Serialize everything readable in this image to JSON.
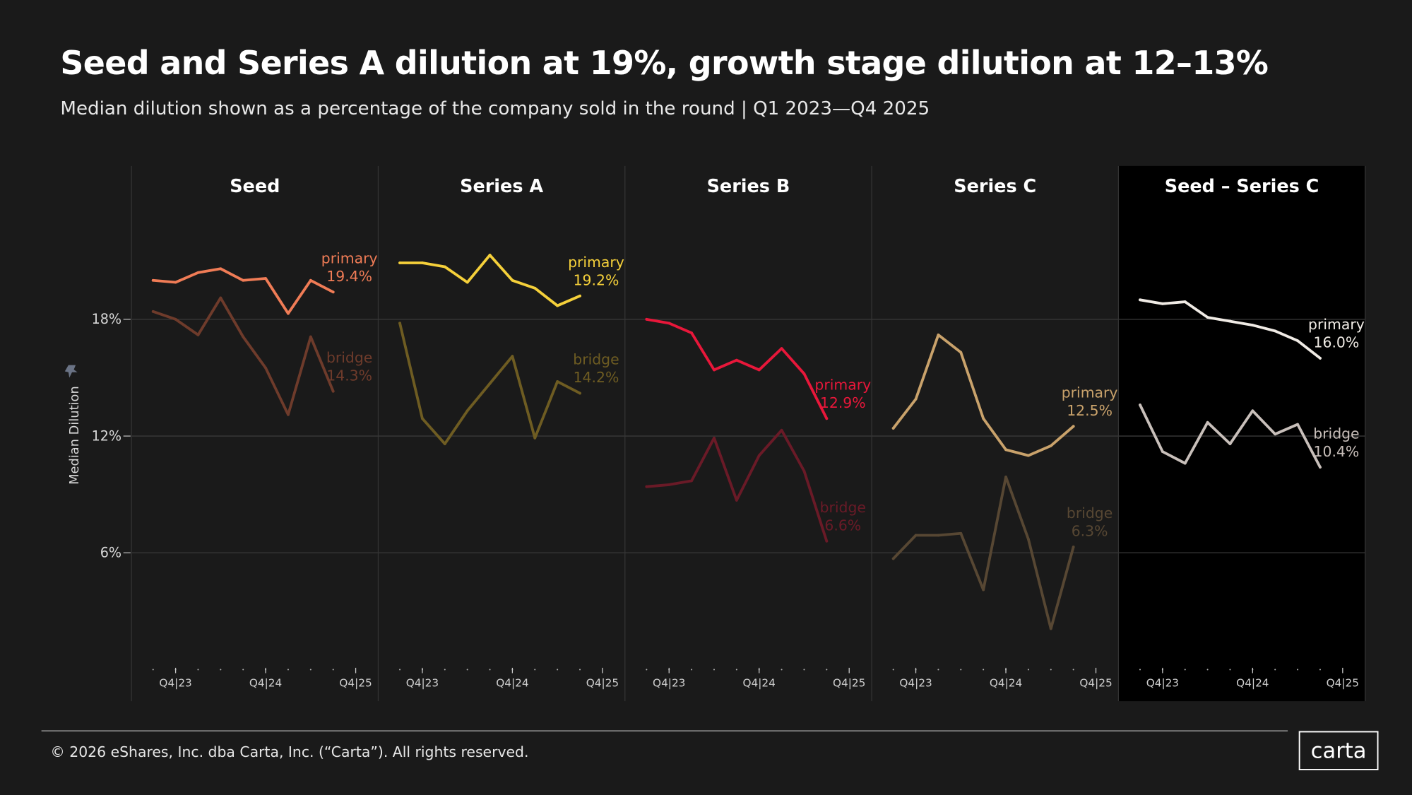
{
  "header": {
    "title": "Seed and Series A dilution at 19%, growth stage dilution at 12–13%",
    "subtitle": "Median dilution shown as a percentage of the company sold in the round | Q1 2023—Q4 2025"
  },
  "footer": {
    "copyright": "© 2026 eShares, Inc. dba Carta, Inc. (“Carta”). All rights reserved.",
    "logo": "carta"
  },
  "icons": {
    "axis_pin": "pin-icon"
  },
  "chart_data": {
    "type": "line",
    "ylabel": "Median Dilution",
    "ylim": [
      0,
      23
    ],
    "yticks": [
      {
        "value": 18,
        "label": "18%"
      },
      {
        "value": 12,
        "label": "12%"
      },
      {
        "value": 6,
        "label": "6%"
      }
    ],
    "grid": true,
    "x": [
      "Q3|23",
      "Q4|23",
      "Q1|24",
      "Q2|24",
      "Q3|24",
      "Q4|24",
      "Q1|25",
      "Q2|25",
      "Q3|25"
    ],
    "xtick_labels": [
      "Q4|23",
      "Q4|24",
      "Q4|25"
    ],
    "panels": [
      {
        "title": "Seed",
        "highlight": false,
        "series": [
          {
            "name": "primary",
            "end_label": "19.4%",
            "color": "#f07c56",
            "values": [
              20.0,
              19.9,
              20.4,
              20.6,
              20.0,
              20.1,
              18.3,
              20.0,
              19.4
            ]
          },
          {
            "name": "bridge",
            "end_label": "14.3%",
            "color": "#6e3b2b",
            "values": [
              18.4,
              18.0,
              17.2,
              19.1,
              17.1,
              15.5,
              13.1,
              17.1,
              14.3
            ]
          }
        ]
      },
      {
        "title": "Series A",
        "highlight": false,
        "series": [
          {
            "name": "primary",
            "end_label": "19.2%",
            "color": "#f5d03a",
            "values": [
              20.9,
              20.9,
              20.7,
              19.9,
              21.3,
              20.0,
              19.6,
              18.7,
              19.2
            ]
          },
          {
            "name": "bridge",
            "end_label": "14.2%",
            "color": "#6e5c22",
            "values": [
              17.8,
              12.9,
              11.6,
              13.3,
              14.7,
              16.1,
              11.9,
              14.8,
              14.2
            ]
          }
        ]
      },
      {
        "title": "Series B",
        "highlight": false,
        "series": [
          {
            "name": "primary",
            "end_label": "12.9%",
            "color": "#e8173a",
            "values": [
              18.0,
              17.8,
              17.3,
              15.4,
              15.9,
              15.4,
              16.5,
              15.2,
              12.9
            ]
          },
          {
            "name": "bridge",
            "end_label": "6.6%",
            "color": "#6a1a27",
            "values": [
              9.4,
              9.5,
              9.7,
              11.9,
              8.7,
              11.0,
              12.3,
              10.2,
              6.6
            ]
          }
        ]
      },
      {
        "title": "Series C",
        "highlight": false,
        "series": [
          {
            "name": "primary",
            "end_label": "12.5%",
            "color": "#c9a26b",
            "values": [
              12.4,
              13.9,
              17.2,
              16.3,
              12.9,
              11.3,
              11.0,
              11.5,
              12.5
            ]
          },
          {
            "name": "bridge",
            "end_label": "6.3%",
            "color": "#574733",
            "values": [
              5.7,
              6.9,
              6.9,
              7.0,
              4.1,
              9.9,
              6.7,
              2.1,
              6.3
            ]
          }
        ]
      },
      {
        "title": "Seed – Series C",
        "highlight": true,
        "series": [
          {
            "name": "primary",
            "end_label": "16.0%",
            "color": "#f0ebe5",
            "values": [
              19.0,
              18.8,
              18.9,
              18.1,
              17.9,
              17.7,
              17.4,
              16.9,
              16.0
            ]
          },
          {
            "name": "bridge",
            "end_label": "10.4%",
            "color": "#c8bfba",
            "values": [
              13.6,
              11.2,
              10.6,
              12.7,
              11.6,
              13.3,
              12.1,
              12.6,
              10.4
            ]
          }
        ]
      }
    ]
  }
}
